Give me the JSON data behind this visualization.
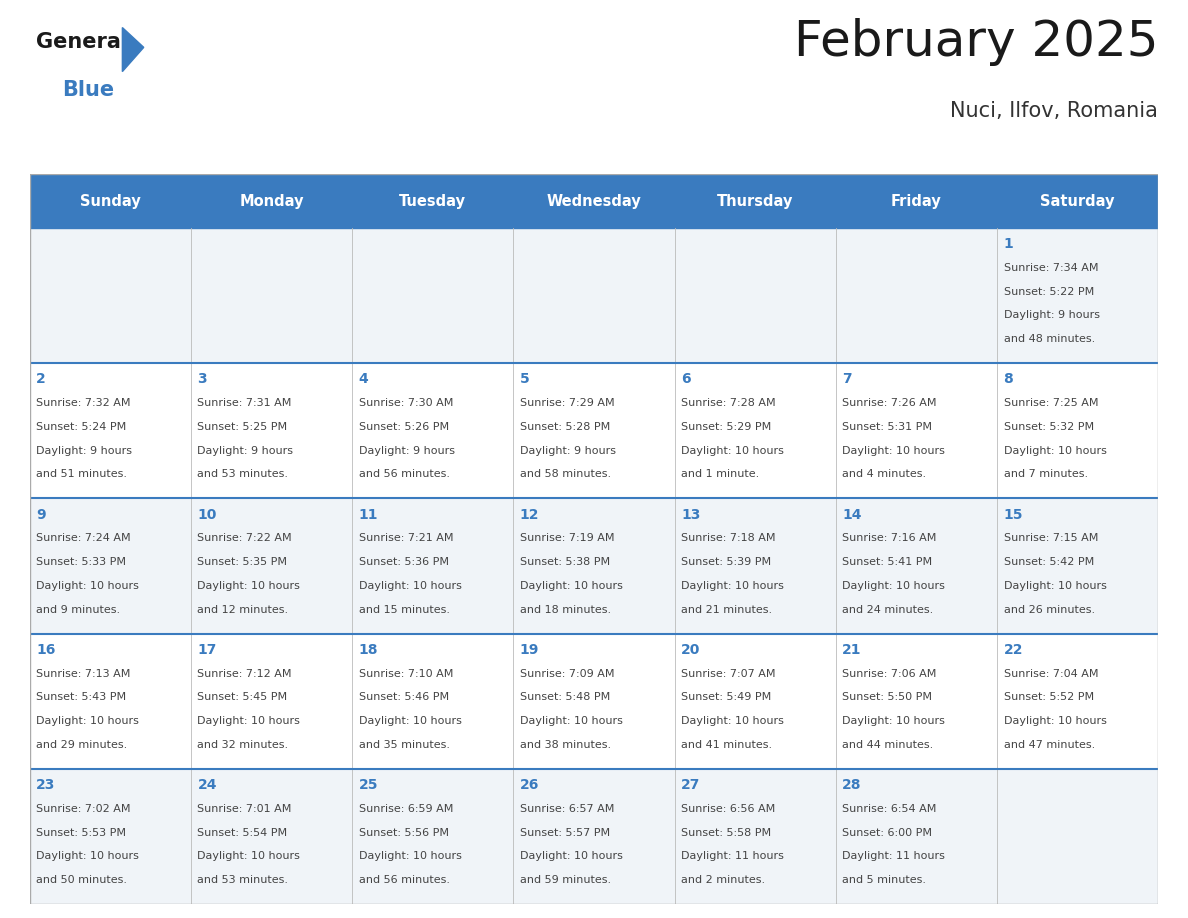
{
  "title": "February 2025",
  "subtitle": "Nuci, Ilfov, Romania",
  "days_of_week": [
    "Sunday",
    "Monday",
    "Tuesday",
    "Wednesday",
    "Thursday",
    "Friday",
    "Saturday"
  ],
  "header_bg": "#3a7bbf",
  "header_text": "#ffffff",
  "cell_bg_light": "#f0f4f8",
  "cell_bg_white": "#ffffff",
  "day_num_color": "#3a7bbf",
  "text_color": "#444444",
  "title_color": "#1a1a1a",
  "subtitle_color": "#333333",
  "divider_color": "#3a7bbf",
  "logo_text_color": "#1a1a1a",
  "logo_blue_color": "#3a7bbf",
  "weeks": [
    [
      {
        "day": null,
        "sunrise": null,
        "sunset": null,
        "daylight": null
      },
      {
        "day": null,
        "sunrise": null,
        "sunset": null,
        "daylight": null
      },
      {
        "day": null,
        "sunrise": null,
        "sunset": null,
        "daylight": null
      },
      {
        "day": null,
        "sunrise": null,
        "sunset": null,
        "daylight": null
      },
      {
        "day": null,
        "sunrise": null,
        "sunset": null,
        "daylight": null
      },
      {
        "day": null,
        "sunrise": null,
        "sunset": null,
        "daylight": null
      },
      {
        "day": 1,
        "sunrise": "7:34 AM",
        "sunset": "5:22 PM",
        "daylight": "9 hours\nand 48 minutes."
      }
    ],
    [
      {
        "day": 2,
        "sunrise": "7:32 AM",
        "sunset": "5:24 PM",
        "daylight": "9 hours\nand 51 minutes."
      },
      {
        "day": 3,
        "sunrise": "7:31 AM",
        "sunset": "5:25 PM",
        "daylight": "9 hours\nand 53 minutes."
      },
      {
        "day": 4,
        "sunrise": "7:30 AM",
        "sunset": "5:26 PM",
        "daylight": "9 hours\nand 56 minutes."
      },
      {
        "day": 5,
        "sunrise": "7:29 AM",
        "sunset": "5:28 PM",
        "daylight": "9 hours\nand 58 minutes."
      },
      {
        "day": 6,
        "sunrise": "7:28 AM",
        "sunset": "5:29 PM",
        "daylight": "10 hours\nand 1 minute."
      },
      {
        "day": 7,
        "sunrise": "7:26 AM",
        "sunset": "5:31 PM",
        "daylight": "10 hours\nand 4 minutes."
      },
      {
        "day": 8,
        "sunrise": "7:25 AM",
        "sunset": "5:32 PM",
        "daylight": "10 hours\nand 7 minutes."
      }
    ],
    [
      {
        "day": 9,
        "sunrise": "7:24 AM",
        "sunset": "5:33 PM",
        "daylight": "10 hours\nand 9 minutes."
      },
      {
        "day": 10,
        "sunrise": "7:22 AM",
        "sunset": "5:35 PM",
        "daylight": "10 hours\nand 12 minutes."
      },
      {
        "day": 11,
        "sunrise": "7:21 AM",
        "sunset": "5:36 PM",
        "daylight": "10 hours\nand 15 minutes."
      },
      {
        "day": 12,
        "sunrise": "7:19 AM",
        "sunset": "5:38 PM",
        "daylight": "10 hours\nand 18 minutes."
      },
      {
        "day": 13,
        "sunrise": "7:18 AM",
        "sunset": "5:39 PM",
        "daylight": "10 hours\nand 21 minutes."
      },
      {
        "day": 14,
        "sunrise": "7:16 AM",
        "sunset": "5:41 PM",
        "daylight": "10 hours\nand 24 minutes."
      },
      {
        "day": 15,
        "sunrise": "7:15 AM",
        "sunset": "5:42 PM",
        "daylight": "10 hours\nand 26 minutes."
      }
    ],
    [
      {
        "day": 16,
        "sunrise": "7:13 AM",
        "sunset": "5:43 PM",
        "daylight": "10 hours\nand 29 minutes."
      },
      {
        "day": 17,
        "sunrise": "7:12 AM",
        "sunset": "5:45 PM",
        "daylight": "10 hours\nand 32 minutes."
      },
      {
        "day": 18,
        "sunrise": "7:10 AM",
        "sunset": "5:46 PM",
        "daylight": "10 hours\nand 35 minutes."
      },
      {
        "day": 19,
        "sunrise": "7:09 AM",
        "sunset": "5:48 PM",
        "daylight": "10 hours\nand 38 minutes."
      },
      {
        "day": 20,
        "sunrise": "7:07 AM",
        "sunset": "5:49 PM",
        "daylight": "10 hours\nand 41 minutes."
      },
      {
        "day": 21,
        "sunrise": "7:06 AM",
        "sunset": "5:50 PM",
        "daylight": "10 hours\nand 44 minutes."
      },
      {
        "day": 22,
        "sunrise": "7:04 AM",
        "sunset": "5:52 PM",
        "daylight": "10 hours\nand 47 minutes."
      }
    ],
    [
      {
        "day": 23,
        "sunrise": "7:02 AM",
        "sunset": "5:53 PM",
        "daylight": "10 hours\nand 50 minutes."
      },
      {
        "day": 24,
        "sunrise": "7:01 AM",
        "sunset": "5:54 PM",
        "daylight": "10 hours\nand 53 minutes."
      },
      {
        "day": 25,
        "sunrise": "6:59 AM",
        "sunset": "5:56 PM",
        "daylight": "10 hours\nand 56 minutes."
      },
      {
        "day": 26,
        "sunrise": "6:57 AM",
        "sunset": "5:57 PM",
        "daylight": "10 hours\nand 59 minutes."
      },
      {
        "day": 27,
        "sunrise": "6:56 AM",
        "sunset": "5:58 PM",
        "daylight": "11 hours\nand 2 minutes."
      },
      {
        "day": 28,
        "sunrise": "6:54 AM",
        "sunset": "6:00 PM",
        "daylight": "11 hours\nand 5 minutes."
      },
      {
        "day": null,
        "sunrise": null,
        "sunset": null,
        "daylight": null
      }
    ]
  ]
}
